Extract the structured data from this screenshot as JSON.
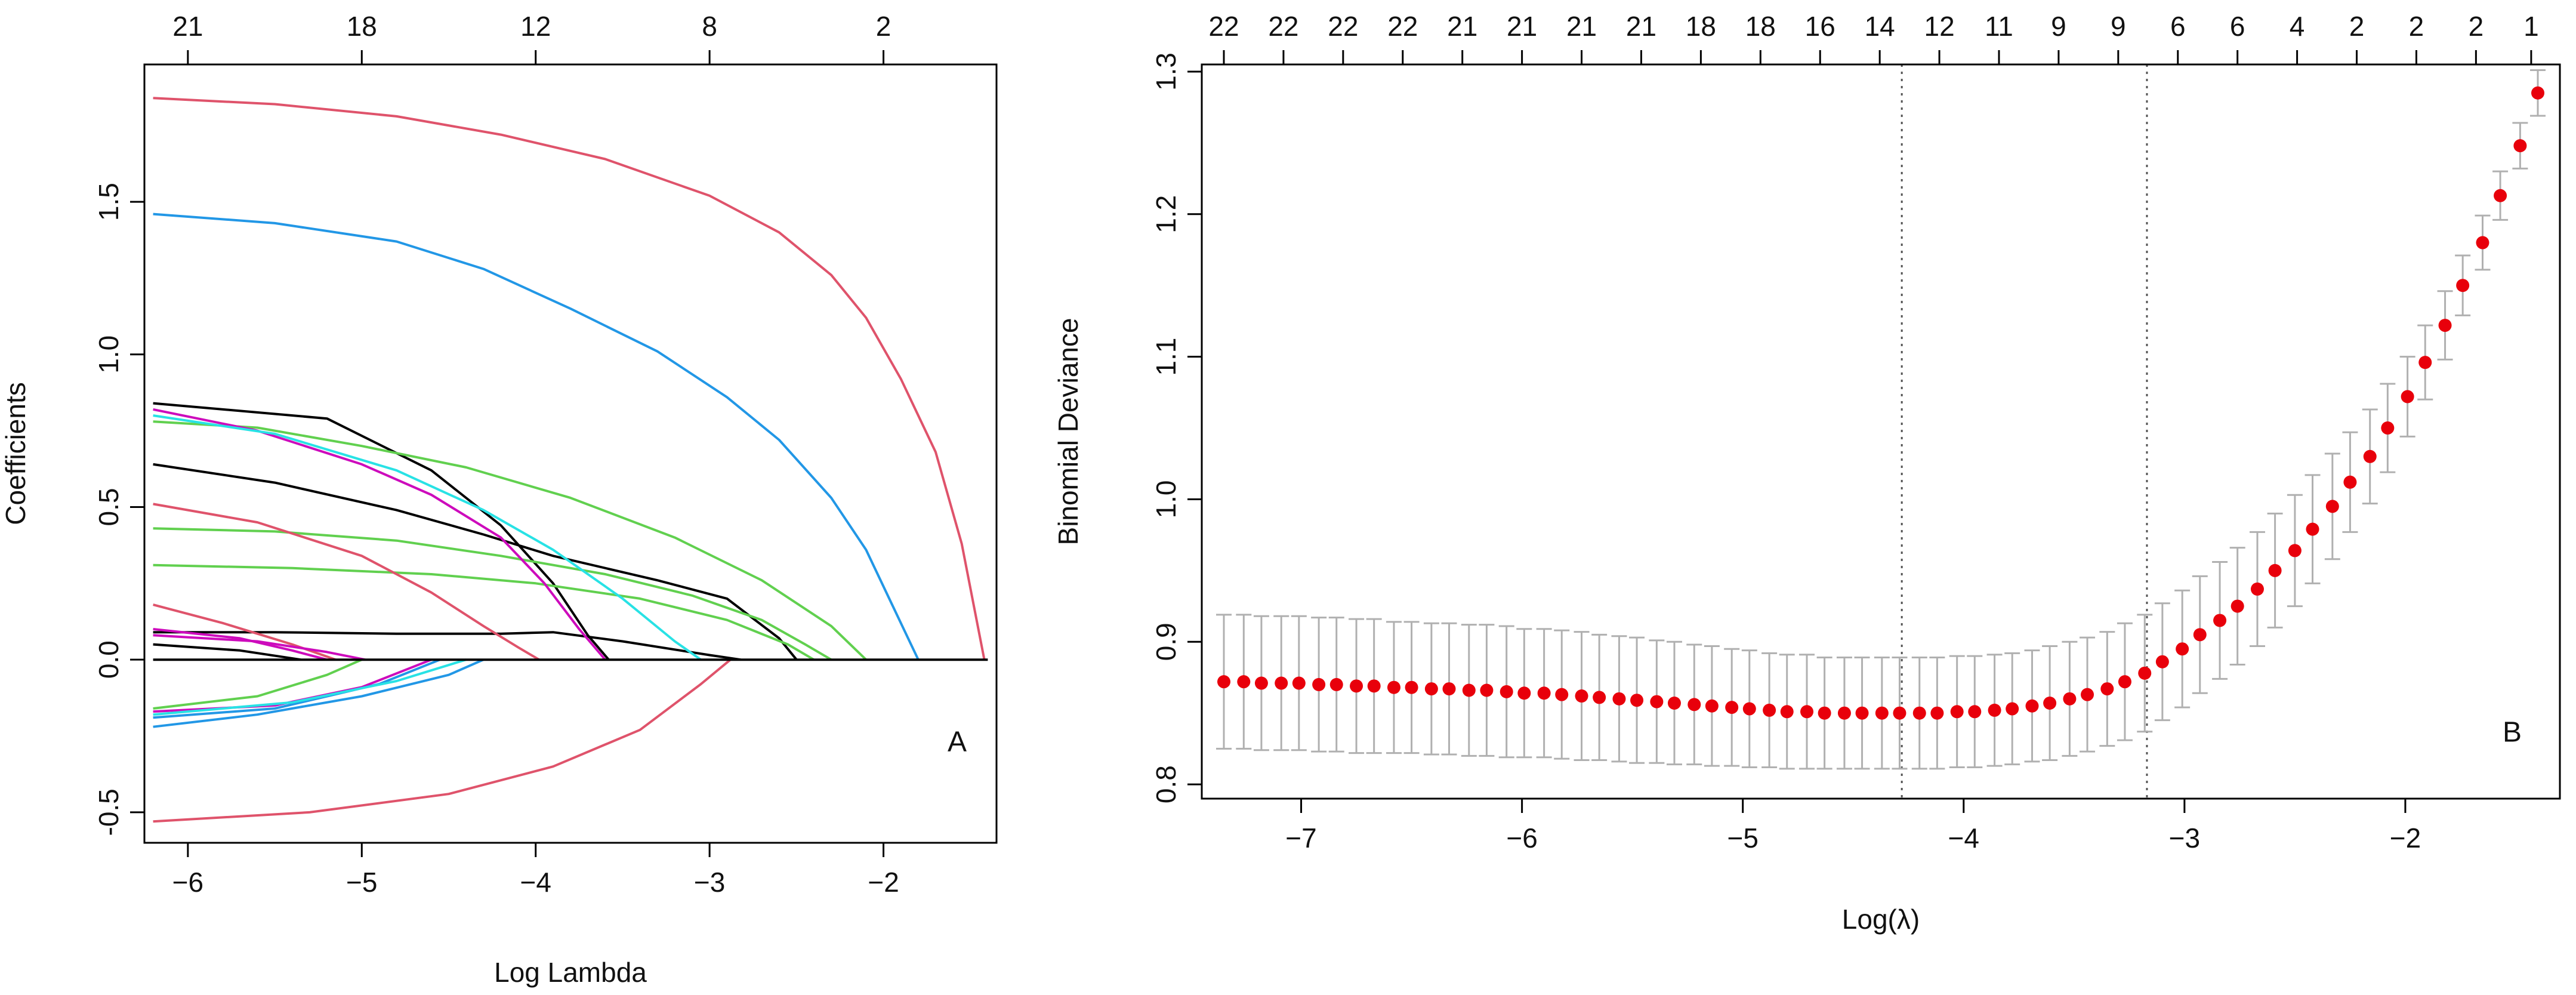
{
  "chart_data": [
    {
      "type": "line",
      "panel_label": "A",
      "xlabel": "Log Lambda",
      "ylabel": "Coefficients",
      "xlim": [
        -6.25,
        -1.35
      ],
      "ylim": [
        -0.6,
        1.95
      ],
      "x_ticks": [
        -6,
        -5,
        -4,
        -3,
        -2
      ],
      "x_tick_labels": [
        "−6",
        "−5",
        "−4",
        "−3",
        "−2"
      ],
      "y_ticks": [
        -0.5,
        0.0,
        0.5,
        1.0,
        1.5
      ],
      "y_tick_labels": [
        "-0.5",
        "0.0",
        "0.5",
        "1.0",
        "1.5"
      ],
      "top_axis": {
        "positions": [
          -6,
          -5,
          -4,
          -3,
          -2
        ],
        "labels": [
          "21",
          "18",
          "12",
          "8",
          "2"
        ]
      },
      "grid": false,
      "colors": {
        "red": "#df536b",
        "blue": "#2297e6",
        "black": "#000000",
        "green": "#61d04f",
        "magenta": "#cd0bbc",
        "cyan": "#28e2e5"
      },
      "series": [
        {
          "color": "red",
          "x": [
            -6.2,
            -5.5,
            -4.8,
            -4.2,
            -3.6,
            -3.0,
            -2.6,
            -2.3,
            -2.1,
            -1.9,
            -1.7,
            -1.55,
            -1.42
          ],
          "y": [
            1.84,
            1.82,
            1.78,
            1.72,
            1.64,
            1.52,
            1.4,
            1.26,
            1.12,
            0.92,
            0.68,
            0.38,
            0.0
          ]
        },
        {
          "color": "blue",
          "x": [
            -6.2,
            -5.5,
            -4.8,
            -4.3,
            -3.8,
            -3.3,
            -2.9,
            -2.6,
            -2.3,
            -2.1,
            -1.95,
            -1.8
          ],
          "y": [
            1.46,
            1.43,
            1.37,
            1.28,
            1.15,
            1.01,
            0.86,
            0.72,
            0.53,
            0.36,
            0.18,
            0.0
          ]
        },
        {
          "color": "black",
          "x": [
            -6.2,
            -5.2,
            -4.6,
            -4.2,
            -3.9,
            -3.7,
            -3.58
          ],
          "y": [
            0.84,
            0.79,
            0.62,
            0.44,
            0.25,
            0.08,
            0.0
          ]
        },
        {
          "color": "black",
          "x": [
            -6.2,
            -5.5,
            -4.8,
            -4.3,
            -3.9,
            -3.3,
            -2.9,
            -2.6,
            -2.5
          ],
          "y": [
            0.64,
            0.58,
            0.49,
            0.41,
            0.34,
            0.26,
            0.2,
            0.07,
            0.0
          ]
        },
        {
          "color": "black",
          "x": [
            -6.2,
            -5.5,
            -4.8,
            -4.2,
            -3.9,
            -3.5,
            -3.0,
            -2.82
          ],
          "y": [
            0.09,
            0.09,
            0.085,
            0.085,
            0.09,
            0.06,
            0.015,
            0.0
          ]
        },
        {
          "color": "black",
          "x": [
            -6.2,
            -5.7,
            -5.35
          ],
          "y": [
            0.05,
            0.03,
            0.0
          ]
        },
        {
          "color": "green",
          "x": [
            -6.2,
            -5.6,
            -5.0,
            -4.4,
            -3.8,
            -3.2,
            -2.7,
            -2.3,
            -2.1
          ],
          "y": [
            0.78,
            0.76,
            0.7,
            0.63,
            0.53,
            0.4,
            0.26,
            0.11,
            0.0
          ]
        },
        {
          "color": "green",
          "x": [
            -6.2,
            -5.5,
            -4.8,
            -4.2,
            -3.6,
            -3.1,
            -2.7,
            -2.45,
            -2.3
          ],
          "y": [
            0.43,
            0.42,
            0.39,
            0.34,
            0.28,
            0.21,
            0.13,
            0.05,
            0.0
          ]
        },
        {
          "color": "green",
          "x": [
            -6.2,
            -5.4,
            -4.6,
            -4.0,
            -3.4,
            -2.9,
            -2.55,
            -2.4
          ],
          "y": [
            0.31,
            0.3,
            0.28,
            0.25,
            0.2,
            0.13,
            0.05,
            0.0
          ]
        },
        {
          "color": "magenta",
          "x": [
            -6.2,
            -5.6,
            -5.0,
            -4.6,
            -4.2,
            -3.95,
            -3.75,
            -3.6
          ],
          "y": [
            0.82,
            0.75,
            0.64,
            0.54,
            0.4,
            0.25,
            0.1,
            0.0
          ]
        },
        {
          "color": "cyan",
          "x": [
            -6.2,
            -5.5,
            -4.8,
            -4.3,
            -3.9,
            -3.5,
            -3.2,
            -3.05
          ],
          "y": [
            0.8,
            0.74,
            0.62,
            0.49,
            0.36,
            0.2,
            0.06,
            0.0
          ]
        },
        {
          "color": "red",
          "x": [
            -6.2,
            -5.6,
            -5.0,
            -4.6,
            -4.3,
            -4.1,
            -3.98
          ],
          "y": [
            0.51,
            0.45,
            0.34,
            0.22,
            0.11,
            0.04,
            0.0
          ]
        },
        {
          "color": "red",
          "x": [
            -6.2,
            -5.8,
            -5.4,
            -5.15
          ],
          "y": [
            0.18,
            0.12,
            0.05,
            0.0
          ]
        },
        {
          "color": "red",
          "x": [
            -6.2,
            -5.3,
            -4.5,
            -3.9,
            -3.4,
            -3.05,
            -2.88
          ],
          "y": [
            -0.53,
            -0.5,
            -0.44,
            -0.35,
            -0.23,
            -0.08,
            0.0
          ]
        },
        {
          "color": "magenta",
          "x": [
            -6.2,
            -5.5,
            -5.0,
            -4.6
          ],
          "y": [
            -0.17,
            -0.15,
            -0.09,
            0.0
          ]
        },
        {
          "color": "magenta",
          "x": [
            -6.2,
            -5.7,
            -5.4,
            -5.2
          ],
          "y": [
            0.1,
            0.07,
            0.03,
            0.0
          ]
        },
        {
          "color": "blue",
          "x": [
            -6.2,
            -5.6,
            -5.0,
            -4.5,
            -4.3
          ],
          "y": [
            -0.22,
            -0.18,
            -0.12,
            -0.05,
            0.0
          ]
        },
        {
          "color": "blue",
          "x": [
            -6.2,
            -5.5,
            -4.9,
            -4.55
          ],
          "y": [
            -0.19,
            -0.16,
            -0.08,
            0.0
          ]
        },
        {
          "color": "cyan",
          "x": [
            -6.2,
            -5.4,
            -4.8,
            -4.4
          ],
          "y": [
            -0.18,
            -0.14,
            -0.07,
            0.0
          ]
        },
        {
          "color": "green",
          "x": [
            -6.2,
            -5.6,
            -5.2,
            -5.0
          ],
          "y": [
            -0.16,
            -0.12,
            -0.05,
            0.0
          ]
        },
        {
          "color": "magenta",
          "x": [
            -6.2,
            -5.6,
            -5.2,
            -4.98
          ],
          "y": [
            0.08,
            0.06,
            0.025,
            0.0
          ]
        },
        {
          "color": "black",
          "x": [
            -6.2,
            -1.4
          ],
          "y": [
            0.0,
            0.0
          ]
        }
      ]
    },
    {
      "type": "scatter",
      "panel_label": "B",
      "xlabel": "Log(λ)",
      "ylabel": "Binomial Deviance",
      "xlim": [
        -7.45,
        -1.3
      ],
      "ylim": [
        0.79,
        1.305
      ],
      "x_ticks": [
        -7,
        -6,
        -5,
        -4,
        -3,
        -2
      ],
      "x_tick_labels": [
        "−7",
        "−6",
        "−5",
        "−4",
        "−3",
        "−2"
      ],
      "y_ticks": [
        0.8,
        0.9,
        1.0,
        1.1,
        1.2,
        1.3
      ],
      "y_tick_labels": [
        "0.8",
        "0.9",
        "1.0",
        "1.1",
        "1.2",
        "1.3"
      ],
      "top_axis": {
        "positions": [
          -7.35,
          -7.08,
          -6.81,
          -6.54,
          -6.27,
          -6.0,
          -5.73,
          -5.46,
          -5.19,
          -4.92,
          -4.65,
          -4.38,
          -4.11,
          -3.84,
          -3.57,
          -3.3,
          -3.03,
          -2.76,
          -2.49,
          -2.22,
          -1.95,
          -1.68,
          -1.43
        ],
        "labels": [
          "22",
          "22",
          "22",
          "22",
          "21",
          "21",
          "21",
          "21",
          "18",
          "18",
          "16",
          "14",
          "12",
          "11",
          "9",
          "9",
          "6",
          "6",
          "4",
          "2",
          "2",
          "2",
          "1"
        ]
      },
      "vlines": [
        -4.28,
        -3.17
      ],
      "grid": false,
      "point_color": "#e8000b",
      "errorbar_color": "#b0b0b0",
      "x": [
        -7.35,
        -7.26,
        -7.18,
        -7.09,
        -7.01,
        -6.92,
        -6.84,
        -6.75,
        -6.67,
        -6.58,
        -6.5,
        -6.41,
        -6.33,
        -6.24,
        -6.16,
        -6.07,
        -5.99,
        -5.9,
        -5.82,
        -5.73,
        -5.65,
        -5.56,
        -5.48,
        -5.39,
        -5.31,
        -5.22,
        -5.14,
        -5.05,
        -4.97,
        -4.88,
        -4.8,
        -4.71,
        -4.63,
        -4.54,
        -4.46,
        -4.37,
        -4.29,
        -4.2,
        -4.12,
        -4.03,
        -3.95,
        -3.86,
        -3.78,
        -3.69,
        -3.61,
        -3.52,
        -3.44,
        -3.35,
        -3.27,
        -3.18,
        -3.1,
        -3.01,
        -2.93,
        -2.84,
        -2.76,
        -2.67,
        -2.59,
        -2.5,
        -2.42,
        -2.33,
        -2.25,
        -2.16,
        -2.08,
        -1.99,
        -1.91,
        -1.82,
        -1.74,
        -1.65,
        -1.57,
        -1.48,
        -1.4
      ],
      "y": [
        0.872,
        0.872,
        0.871,
        0.871,
        0.871,
        0.87,
        0.87,
        0.869,
        0.869,
        0.868,
        0.868,
        0.867,
        0.867,
        0.866,
        0.866,
        0.865,
        0.864,
        0.864,
        0.863,
        0.862,
        0.861,
        0.86,
        0.859,
        0.858,
        0.857,
        0.856,
        0.855,
        0.854,
        0.853,
        0.852,
        0.851,
        0.851,
        0.85,
        0.85,
        0.85,
        0.85,
        0.85,
        0.85,
        0.85,
        0.851,
        0.851,
        0.852,
        0.853,
        0.855,
        0.857,
        0.86,
        0.863,
        0.867,
        0.872,
        0.878,
        0.886,
        0.895,
        0.905,
        0.915,
        0.925,
        0.937,
        0.95,
        0.964,
        0.979,
        0.995,
        1.012,
        1.03,
        1.05,
        1.072,
        1.096,
        1.122,
        1.15,
        1.18,
        1.213,
        1.248,
        1.285
      ],
      "se": [
        0.047,
        0.047,
        0.047,
        0.047,
        0.047,
        0.047,
        0.047,
        0.047,
        0.047,
        0.046,
        0.046,
        0.046,
        0.046,
        0.046,
        0.046,
        0.046,
        0.045,
        0.045,
        0.045,
        0.045,
        0.044,
        0.044,
        0.044,
        0.043,
        0.043,
        0.042,
        0.042,
        0.041,
        0.041,
        0.04,
        0.04,
        0.04,
        0.039,
        0.039,
        0.039,
        0.039,
        0.039,
        0.039,
        0.039,
        0.039,
        0.039,
        0.039,
        0.039,
        0.039,
        0.04,
        0.04,
        0.04,
        0.04,
        0.041,
        0.041,
        0.041,
        0.041,
        0.041,
        0.041,
        0.041,
        0.04,
        0.04,
        0.039,
        0.038,
        0.037,
        0.035,
        0.033,
        0.031,
        0.028,
        0.026,
        0.024,
        0.021,
        0.019,
        0.017,
        0.016,
        0.016
      ]
    }
  ]
}
